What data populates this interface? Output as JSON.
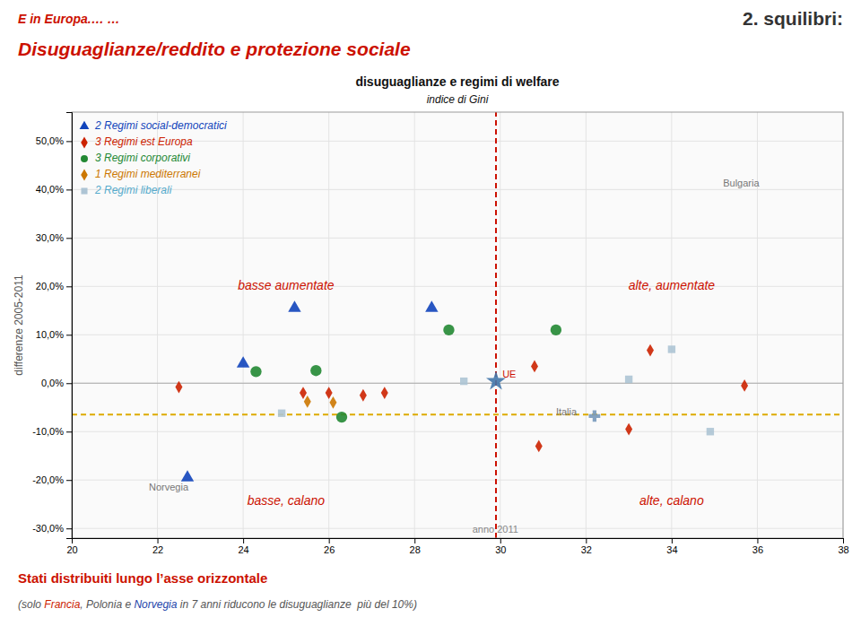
{
  "chart_data": {
    "type": "scatter",
    "suptitle": "2. squilibri:",
    "headline": "Disuguaglianze/reddito e protezione sociale",
    "banner": "E in Europa.… …",
    "title": "disuguaglianze e regimi di welfare",
    "subtitle": "indice di Gini",
    "y_label": "differenze 2005-2011",
    "xlim": [
      20,
      38
    ],
    "ylim": [
      -0.32,
      0.56
    ],
    "xticks": [
      20,
      22,
      24,
      26,
      28,
      30,
      32,
      34,
      36,
      38
    ],
    "yticks": [
      {
        "value": -0.3,
        "label": "-30,0%"
      },
      {
        "value": -0.2,
        "label": "-20,0%"
      },
      {
        "value": -0.1,
        "label": "-10,0%"
      },
      {
        "value": 0.0,
        "label": "0,0%"
      },
      {
        "value": 0.1,
        "label": "10,0%"
      },
      {
        "value": 0.2,
        "label": "20,0%"
      },
      {
        "value": 0.3,
        "label": "30,0%"
      },
      {
        "value": 0.4,
        "label": "40,0%"
      },
      {
        "value": 0.5,
        "label": "50,0%"
      }
    ],
    "grid": true,
    "legend": "top-left",
    "series": [
      {
        "name": "2 Regimi social-democratici",
        "color": "#1144bb",
        "marker": "triangle",
        "x": [
          22.7,
          25.2,
          28.4,
          24.0
        ],
        "values": [
          -0.195,
          0.155,
          0.155,
          0.04
        ]
      },
      {
        "name": "3 Regimi est Europa",
        "color": "#cc2200",
        "marker": "diamond",
        "x": [
          22.5,
          25.4,
          26.0,
          26.8,
          27.3,
          30.8,
          30.9,
          33.0,
          33.5,
          35.7
        ],
        "values": [
          -0.008,
          -0.02,
          -0.02,
          -0.025,
          -0.02,
          0.035,
          -0.13,
          -0.095,
          0.068,
          -0.005
        ]
      },
      {
        "name": "3 Regimi corporativi",
        "color": "#228833",
        "marker": "circle",
        "x": [
          24.3,
          25.7,
          26.3,
          28.8,
          31.3
        ],
        "values": [
          0.024,
          0.026,
          -0.07,
          0.11,
          0.11
        ]
      },
      {
        "name": "1 Regimi mediterranei",
        "color": "#cc7700",
        "marker": "diamond",
        "x": [
          25.5,
          26.1
        ],
        "values": [
          -0.038,
          -0.04
        ]
      },
      {
        "name": "2 Regimi liberali",
        "color": "#55aacc",
        "marker": "square",
        "colors": [
          "#adc4d4",
          "#adc4d4",
          "#adc4d4",
          "#adc4d4",
          "#adc4d4"
        ],
        "x": [
          24.9,
          29.15,
          33.0,
          34.0,
          34.9
        ],
        "values": [
          -0.062,
          0.004,
          0.008,
          0.07,
          -0.1
        ]
      },
      {
        "color": "#4477aa",
        "marker": "star",
        "x": [
          29.9
        ],
        "values": [
          0.004
        ]
      },
      {
        "color": "#7799bb",
        "marker": "plus",
        "x": [
          32.2
        ],
        "values": [
          -0.068
        ]
      }
    ],
    "reference_lines": [
      {
        "axis": "y",
        "value": 0.0,
        "color": "#aaaaaa",
        "line_style": "solid"
      },
      {
        "axis": "y",
        "value": -0.065,
        "color": "#ddaa00",
        "line_style": "dashed"
      },
      {
        "axis": "x",
        "value": 29.9,
        "color": "#cc1100",
        "line_style": "dashed"
      }
    ],
    "quadrant_labels": [
      {
        "text": "basse aumentate",
        "x": 25.0,
        "y": 0.2,
        "color": "#cc1100"
      },
      {
        "text": "alte, aumentate",
        "x": 34.0,
        "y": 0.2,
        "color": "#cc1100"
      },
      {
        "text": "basse, calano",
        "x": 25.0,
        "y": -0.245,
        "color": "#cc1100"
      },
      {
        "text": "alte, calano",
        "x": 34.0,
        "y": -0.245,
        "color": "#cc1100"
      }
    ],
    "annotations": [
      {
        "text": "UE",
        "x": 30.05,
        "y": 0.006,
        "color": "#cc1100"
      },
      {
        "text": "Italia",
        "x": 31.3,
        "y": -0.072,
        "color": "#777777"
      },
      {
        "text": "Norvegia",
        "x": 21.8,
        "y": -0.228,
        "color": "#777777"
      },
      {
        "text": "Bulgaria",
        "x": 35.2,
        "y": 0.4,
        "color": "#777777"
      },
      {
        "text": "anno 2011",
        "x": 29.35,
        "y": -0.315,
        "color": "#888888"
      }
    ],
    "footnote": "Stati distribuiti lungo l’asse orizzontale",
    "footnote_parts": [
      {
        "text": "(solo ",
        "color": "#555555"
      },
      {
        "text": "Francia",
        "color": "#cc2200"
      },
      {
        "text": ", Polonia e ",
        "color": "#555555"
      },
      {
        "text": "Norvegia",
        "color": "#2244aa"
      },
      {
        "text": " in 7 anni riducono le disuguaglianze  più del 10%)",
        "color": "#555555"
      }
    ]
  }
}
